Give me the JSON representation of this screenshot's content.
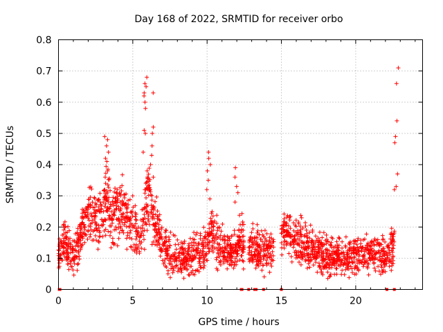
{
  "chart_data": {
    "type": "scatter",
    "title": "Day 168 of 2022, SRMTID for receiver orbo",
    "xlabel": "GPS time / hours",
    "ylabel": "SRMTID / TECUs",
    "xlim": [
      0,
      24.5
    ],
    "ylim": [
      0,
      0.8
    ],
    "x_ticks": [
      0,
      5,
      10,
      15,
      20
    ],
    "x_tick_labels": [
      "0",
      "5",
      "10",
      "15",
      "20"
    ],
    "y_ticks": [
      0,
      0.1,
      0.2,
      0.3,
      0.4,
      0.5,
      0.6,
      0.7,
      0.8
    ],
    "y_tick_labels": [
      "0",
      "0.1",
      "0.2",
      "0.3",
      "0.4",
      "0.5",
      "0.6",
      "0.7",
      "0.8"
    ],
    "grid": true,
    "marker": "+",
    "color": "#ff0000",
    "series": [
      {
        "name": "SRMTID",
        "segments": [
          {
            "x": [
              0,
              0.25,
              0.5,
              0.75,
              1.0,
              1.25,
              1.5,
              1.75,
              2.0,
              2.25,
              2.5,
              2.75,
              3.0,
              3.25,
              3.5,
              3.75,
              4.0,
              4.25,
              4.5,
              4.75,
              5.0,
              5.25,
              5.5,
              5.75,
              6.0,
              6.25,
              6.5,
              6.75,
              7.0,
              7.5,
              8.0,
              8.5,
              9.0,
              9.5,
              10.0,
              10.25,
              10.5,
              10.75,
              11.0,
              11.5,
              12.0,
              12.25,
              12.5
            ],
            "y": [
              0.12,
              0.14,
              0.15,
              0.13,
              0.11,
              0.13,
              0.17,
              0.2,
              0.22,
              0.24,
              0.21,
              0.22,
              0.27,
              0.29,
              0.26,
              0.25,
              0.23,
              0.26,
              0.24,
              0.22,
              0.21,
              0.17,
              0.15,
              0.22,
              0.3,
              0.26,
              0.23,
              0.18,
              0.14,
              0.11,
              0.1,
              0.1,
              0.11,
              0.12,
              0.15,
              0.19,
              0.18,
              0.15,
              0.13,
              0.12,
              0.13,
              0.16,
              0.15
            ]
          },
          {
            "x": [
              12.8,
              13.0,
              13.5,
              14.0,
              14.5
            ],
            "y": [
              0.14,
              0.15,
              0.13,
              0.12,
              0.13
            ]
          },
          {
            "x": [
              15.0,
              15.5,
              16.0,
              16.5,
              17.0,
              17.5,
              18.0,
              18.5,
              19.0,
              19.5,
              20.0,
              20.5,
              21.0,
              21.5,
              22.0,
              22.3,
              22.6
            ],
            "y": [
              0.16,
              0.18,
              0.16,
              0.14,
              0.13,
              0.12,
              0.11,
              0.1,
              0.1,
              0.1,
              0.11,
              0.12,
              0.12,
              0.11,
              0.1,
              0.12,
              0.15
            ]
          }
        ],
        "noise": 0.05
      }
    ],
    "peaks": [
      {
        "x": 3.25,
        "y": [
          0.3,
          0.34,
          0.38,
          0.41,
          0.44,
          0.46,
          0.48,
          0.49,
          0.42,
          0.36
        ]
      },
      {
        "x": 4.1,
        "y": [
          0.28,
          0.3,
          0.32,
          0.29
        ]
      },
      {
        "x": 5.85,
        "y": [
          0.32,
          0.38,
          0.44,
          0.5,
          0.51,
          0.58,
          0.6,
          0.63,
          0.65,
          0.68,
          0.66,
          0.62
        ]
      },
      {
        "x": 6.3,
        "y": [
          0.32,
          0.36,
          0.4,
          0.43,
          0.46,
          0.5,
          0.52,
          0.63
        ]
      },
      {
        "x": 10.1,
        "y": [
          0.29,
          0.32,
          0.35,
          0.38,
          0.4,
          0.42,
          0.44
        ]
      },
      {
        "x": 12.0,
        "y": [
          0.28,
          0.31,
          0.33,
          0.36,
          0.39
        ]
      },
      {
        "x": 22.75,
        "y": [
          0.32,
          0.33,
          0.37,
          0.47,
          0.49,
          0.54,
          0.66,
          0.71
        ]
      }
    ],
    "zero_markers_x": [
      0.05,
      0.1,
      12.3,
      12.35,
      12.8,
      13.2,
      13.3,
      13.8,
      15.0,
      22.1,
      22.6
    ]
  }
}
